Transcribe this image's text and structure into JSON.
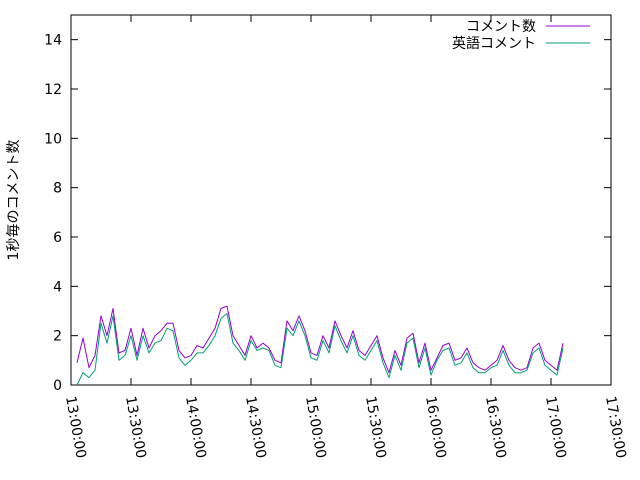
{
  "chart_data": {
    "type": "line",
    "ylabel": "1秒毎のコメント数",
    "xlabel": "",
    "title": "",
    "xlim": [
      "13:00:00",
      "17:30:00"
    ],
    "ylim": [
      0,
      15
    ],
    "x_ticks": [
      "13:00:00",
      "13:30:00",
      "14:00:00",
      "14:30:00",
      "15:00:00",
      "15:30:00",
      "16:00:00",
      "16:30:00",
      "17:00:00",
      "17:30:00"
    ],
    "y_ticks": [
      0,
      2,
      4,
      6,
      8,
      10,
      12,
      14
    ],
    "grid": false,
    "legend_position": "top-right",
    "x": [
      "13:03:00",
      "13:06:00",
      "13:09:00",
      "13:12:00",
      "13:15:00",
      "13:18:00",
      "13:21:00",
      "13:24:00",
      "13:27:00",
      "13:30:00",
      "13:33:00",
      "13:36:00",
      "13:39:00",
      "13:42:00",
      "13:45:00",
      "13:48:00",
      "13:51:00",
      "13:54:00",
      "13:57:00",
      "14:00:00",
      "14:03:00",
      "14:06:00",
      "14:09:00",
      "14:12:00",
      "14:15:00",
      "14:18:00",
      "14:21:00",
      "14:24:00",
      "14:27:00",
      "14:30:00",
      "14:33:00",
      "14:36:00",
      "14:39:00",
      "14:42:00",
      "14:45:00",
      "14:48:00",
      "14:51:00",
      "14:54:00",
      "14:57:00",
      "15:00:00",
      "15:03:00",
      "15:06:00",
      "15:09:00",
      "15:12:00",
      "15:15:00",
      "15:18:00",
      "15:21:00",
      "15:24:00",
      "15:27:00",
      "15:30:00",
      "15:33:00",
      "15:36:00",
      "15:39:00",
      "15:42:00",
      "15:45:00",
      "15:48:00",
      "15:51:00",
      "15:54:00",
      "15:57:00",
      "16:00:00",
      "16:03:00",
      "16:06:00",
      "16:09:00",
      "16:12:00",
      "16:15:00",
      "16:18:00",
      "16:21:00",
      "16:24:00",
      "16:27:00",
      "16:30:00",
      "16:33:00",
      "16:36:00",
      "16:39:00",
      "16:42:00",
      "16:45:00",
      "16:48:00",
      "16:51:00",
      "16:54:00",
      "16:57:00",
      "17:00:00",
      "17:03:00",
      "17:06:00"
    ],
    "series": [
      {
        "name": "コメント数",
        "color": "#9400d3",
        "values": [
          0.9,
          1.9,
          0.7,
          1.2,
          2.8,
          2.0,
          3.1,
          1.3,
          1.4,
          2.3,
          1.2,
          2.3,
          1.5,
          2.0,
          2.2,
          2.5,
          2.5,
          1.4,
          1.1,
          1.2,
          1.6,
          1.5,
          1.9,
          2.3,
          3.1,
          3.2,
          2.0,
          1.6,
          1.2,
          2.0,
          1.5,
          1.7,
          1.5,
          1.0,
          0.9,
          2.6,
          2.2,
          2.8,
          2.2,
          1.3,
          1.2,
          2.0,
          1.5,
          2.6,
          2.0,
          1.5,
          2.2,
          1.4,
          1.2,
          1.6,
          2.0,
          1.1,
          0.5,
          1.4,
          0.8,
          1.9,
          2.1,
          0.9,
          1.7,
          0.6,
          1.1,
          1.6,
          1.7,
          1.0,
          1.1,
          1.5,
          0.9,
          0.7,
          0.6,
          0.8,
          1.0,
          1.6,
          1.0,
          0.7,
          0.6,
          0.7,
          1.5,
          1.7,
          1.0,
          0.8,
          0.6,
          1.7
        ]
      },
      {
        "name": "英語コメント",
        "color": "#009e73",
        "values": [
          0.0,
          0.5,
          0.3,
          0.6,
          2.5,
          1.7,
          2.8,
          1.0,
          1.2,
          2.0,
          1.0,
          2.0,
          1.3,
          1.7,
          1.8,
          2.3,
          2.2,
          1.1,
          0.8,
          1.0,
          1.3,
          1.3,
          1.6,
          2.0,
          2.7,
          2.9,
          1.7,
          1.4,
          1.0,
          1.8,
          1.4,
          1.5,
          1.4,
          0.8,
          0.7,
          2.3,
          2.0,
          2.6,
          2.0,
          1.1,
          1.0,
          1.8,
          1.3,
          2.4,
          1.8,
          1.3,
          2.0,
          1.2,
          1.0,
          1.4,
          1.8,
          0.9,
          0.3,
          1.2,
          0.6,
          1.7,
          1.9,
          0.7,
          1.5,
          0.4,
          1.0,
          1.4,
          1.5,
          0.8,
          0.9,
          1.3,
          0.7,
          0.5,
          0.5,
          0.7,
          0.8,
          1.4,
          0.8,
          0.5,
          0.5,
          0.6,
          1.3,
          1.5,
          0.8,
          0.6,
          0.4,
          1.5
        ]
      }
    ]
  }
}
